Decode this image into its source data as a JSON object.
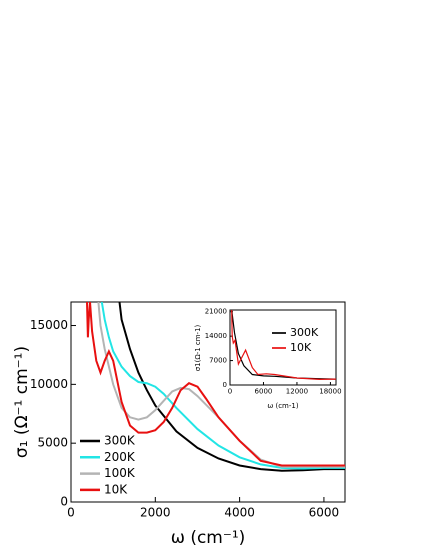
{
  "chart_data": [
    {
      "type": "line",
      "xlabel": "ω (cm⁻¹)",
      "ylabel": "σ₁ (Ω⁻¹ cm⁻¹)",
      "xlim": [
        0,
        6500
      ],
      "ylim": [
        0,
        17000
      ],
      "xticks": [
        0,
        2000,
        4000,
        6000
      ],
      "yticks": [
        0,
        5000,
        10000,
        15000
      ],
      "series": [
        {
          "name": "300K",
          "color": "#000000",
          "x": [
            1150,
            1200,
            1400,
            1600,
            1800,
            2000,
            2500,
            3000,
            3500,
            4000,
            4500,
            5000,
            5500,
            6000,
            6500
          ],
          "values": [
            17000,
            15500,
            13000,
            11000,
            9500,
            8200,
            6000,
            4600,
            3700,
            3100,
            2800,
            2650,
            2700,
            2800,
            2800
          ]
        },
        {
          "name": "200K",
          "color": "#22e5e5",
          "x": [
            730,
            800,
            900,
            1000,
            1200,
            1400,
            1600,
            1800,
            2000,
            2200,
            2500,
            3000,
            3500,
            4000,
            4500,
            5000,
            5500,
            6000,
            6500
          ],
          "values": [
            17000,
            15500,
            14000,
            12800,
            11500,
            10700,
            10200,
            10100,
            9800,
            9200,
            8000,
            6200,
            4800,
            3800,
            3200,
            2900,
            2850,
            2900,
            2900
          ]
        },
        {
          "name": "100K",
          "color": "#b4b4b4",
          "x": [
            650,
            700,
            800,
            1000,
            1200,
            1400,
            1600,
            1800,
            2000,
            2200,
            2400,
            2600,
            2800,
            3000,
            3500,
            4000,
            4500,
            5000,
            5500,
            6000,
            6500
          ],
          "values": [
            17000,
            15000,
            13000,
            10000,
            8000,
            7200,
            7000,
            7200,
            7800,
            8600,
            9400,
            9700,
            9600,
            9000,
            7200,
            5200,
            3600,
            3000,
            3000,
            3000,
            3000
          ]
        },
        {
          "name": "10K",
          "color": "#e81010",
          "x": [
            380,
            400,
            420,
            450,
            500,
            600,
            700,
            800,
            900,
            1000,
            1200,
            1400,
            1600,
            1800,
            2000,
            2200,
            2400,
            2600,
            2800,
            3000,
            3200,
            3500,
            4000,
            4500,
            5000,
            5500,
            6000,
            6500
          ],
          "values": [
            17000,
            14000,
            15500,
            17000,
            14500,
            12000,
            11000,
            12000,
            12800,
            12000,
            8500,
            6500,
            5900,
            5900,
            6100,
            6800,
            8000,
            9500,
            10100,
            9800,
            8800,
            7200,
            5200,
            3500,
            3100,
            3100,
            3100,
            3100
          ]
        }
      ]
    },
    {
      "type": "line",
      "xlabel": "ω (cm-1)",
      "ylabel": "σ1(Ω-1 cm-1)",
      "xlim": [
        0,
        19000
      ],
      "ylim": [
        0,
        21500
      ],
      "xticks": [
        0,
        6000,
        12000,
        18000
      ],
      "yticks": [
        0,
        7000,
        14000,
        21000
      ],
      "series": [
        {
          "name": "300K",
          "color": "#000000",
          "x": [
            300,
            800,
            1500,
            2500,
            4000,
            6000,
            8000,
            12000,
            16000,
            19000
          ],
          "values": [
            21500,
            15000,
            9000,
            5500,
            3000,
            2600,
            2500,
            2000,
            1800,
            1700
          ]
        },
        {
          "name": "10K",
          "color": "#e81010",
          "x": [
            300,
            400,
            600,
            900,
            1500,
            2800,
            4000,
            5000,
            6500,
            8000,
            12000,
            16000,
            19000
          ],
          "values": [
            21500,
            14000,
            12000,
            12800,
            6000,
            10000,
            5000,
            3000,
            3200,
            3000,
            2000,
            1600,
            1700
          ]
        }
      ]
    }
  ]
}
